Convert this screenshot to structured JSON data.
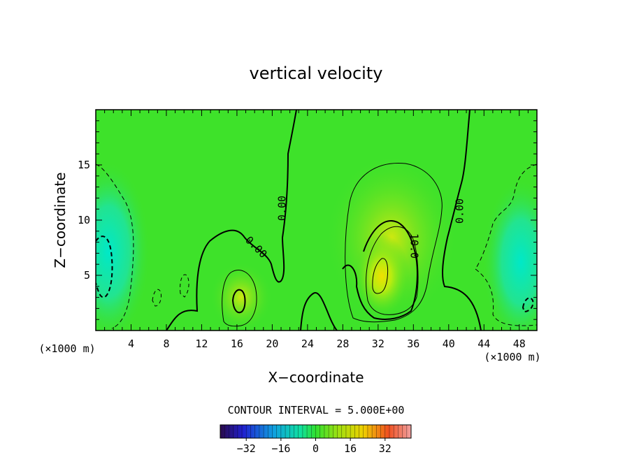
{
  "chart_data": {
    "type": "heatmap",
    "title": "vertical velocity",
    "xlabel": "X−coordinate",
    "ylabel": "Z−coordinate",
    "x_unit_left": "(×1000 m)",
    "x_unit_right": "(×1000 m)",
    "xlim": [
      0,
      50
    ],
    "ylim": [
      0,
      20
    ],
    "xticks": [
      4,
      8,
      12,
      16,
      20,
      24,
      28,
      32,
      36,
      40,
      44,
      48
    ],
    "yticks": [
      5,
      10,
      15
    ],
    "contour_interval_text": "CONTOUR INTERVAL = 5.000E+00",
    "contour_labels": [
      "0.00",
      "0.00",
      "10.0",
      "0.00"
    ],
    "colorbar": {
      "ticks": [
        -32,
        -16,
        0,
        16,
        32
      ],
      "tick_labels": [
        "−32",
        "−16",
        "0",
        "16",
        "32"
      ],
      "range": [
        -44,
        44
      ]
    },
    "features": [
      {
        "x": 33,
        "z": 5,
        "w": 22,
        "sign": "positive"
      },
      {
        "x": 34.5,
        "z": 8.5,
        "w": 16,
        "sign": "positive"
      },
      {
        "x": 16.5,
        "z": 3,
        "w": 14,
        "sign": "positive"
      },
      {
        "x": 3,
        "z": 6,
        "w": -10,
        "sign": "negative"
      },
      {
        "x": 47,
        "z": 5,
        "w": -9,
        "sign": "negative"
      }
    ],
    "grid": false,
    "legend": "none"
  }
}
